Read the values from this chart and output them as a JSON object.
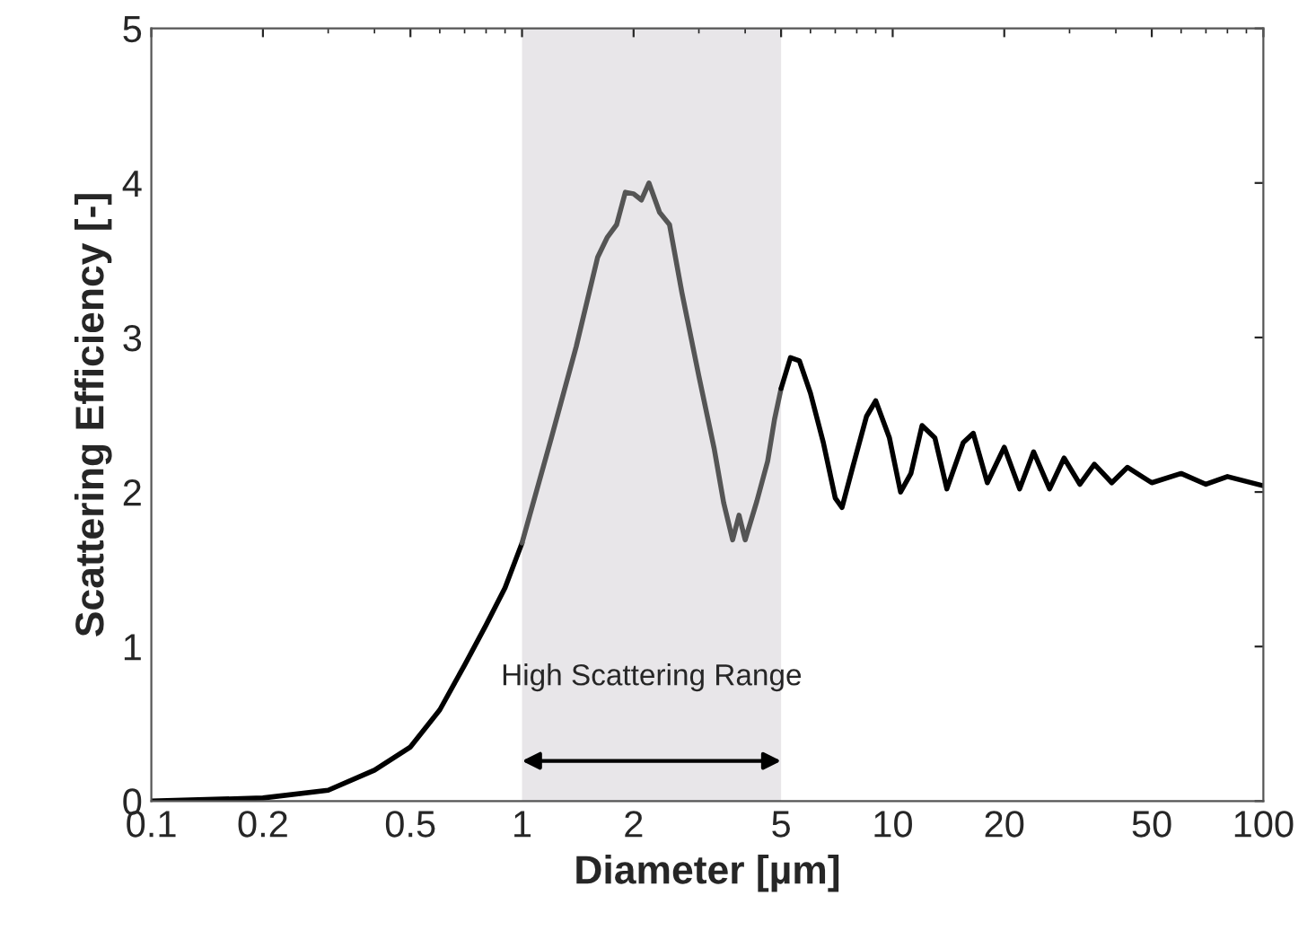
{
  "chart_data": {
    "type": "line",
    "xlabel": "Diameter [µm]",
    "ylabel": "Scattering Efficiency [-]",
    "log": "x",
    "xlim": [
      0.1,
      100
    ],
    "ylim": [
      0,
      5
    ],
    "xticks": [
      0.1,
      0.2,
      0.5,
      1,
      2,
      5,
      10,
      20,
      50,
      100
    ],
    "yticks": [
      0,
      1,
      2,
      3,
      4,
      5
    ],
    "grid": false,
    "legend": false,
    "marker": "none",
    "line_style": "solid",
    "series": [
      {
        "color": "#000000",
        "x": [
          0.1,
          0.2,
          0.3,
          0.4,
          0.5,
          0.6,
          0.7,
          0.8,
          0.9,
          1.0
        ],
        "values": [
          0,
          0.02,
          0.07,
          0.2,
          0.35,
          0.59,
          0.88,
          1.14,
          1.38,
          1.67
        ]
      },
      {
        "color": "#555555",
        "x": [
          1.0,
          1.2,
          1.4,
          1.6,
          1.7,
          1.8,
          1.9,
          2.0,
          2.1,
          2.2,
          2.35,
          2.5,
          2.7,
          3.0,
          3.3,
          3.5,
          3.7,
          3.85,
          4.0,
          4.3,
          4.6,
          4.8,
          5.0
        ],
        "values": [
          1.67,
          2.35,
          2.94,
          3.52,
          3.65,
          3.73,
          3.94,
          3.93,
          3.89,
          4.0,
          3.81,
          3.73,
          3.29,
          2.75,
          2.28,
          1.93,
          1.69,
          1.85,
          1.69,
          1.94,
          2.2,
          2.47,
          2.67
        ]
      },
      {
        "color": "#000000",
        "x": [
          5.0,
          5.3,
          5.6,
          6.0,
          6.5,
          7.0,
          7.3,
          7.8,
          8.5,
          9.0,
          9.8,
          10.5,
          11.2,
          12,
          13,
          14,
          15.5,
          16.5,
          18,
          20,
          22,
          24,
          26.5,
          29,
          32,
          35,
          39,
          43,
          50,
          60,
          70,
          80,
          100
        ],
        "values": [
          2.67,
          2.87,
          2.85,
          2.64,
          2.32,
          1.96,
          1.9,
          2.16,
          2.49,
          2.59,
          2.35,
          2.0,
          2.12,
          2.43,
          2.35,
          2.02,
          2.32,
          2.38,
          2.06,
          2.29,
          2.02,
          2.26,
          2.02,
          2.22,
          2.05,
          2.18,
          2.06,
          2.16,
          2.06,
          2.12,
          2.05,
          2.1,
          2.04
        ]
      }
    ],
    "bands": [
      {
        "axis": "x",
        "from": 1,
        "to": 5,
        "label": "High Scattering Range",
        "color": "#e8e6e9"
      }
    ]
  }
}
